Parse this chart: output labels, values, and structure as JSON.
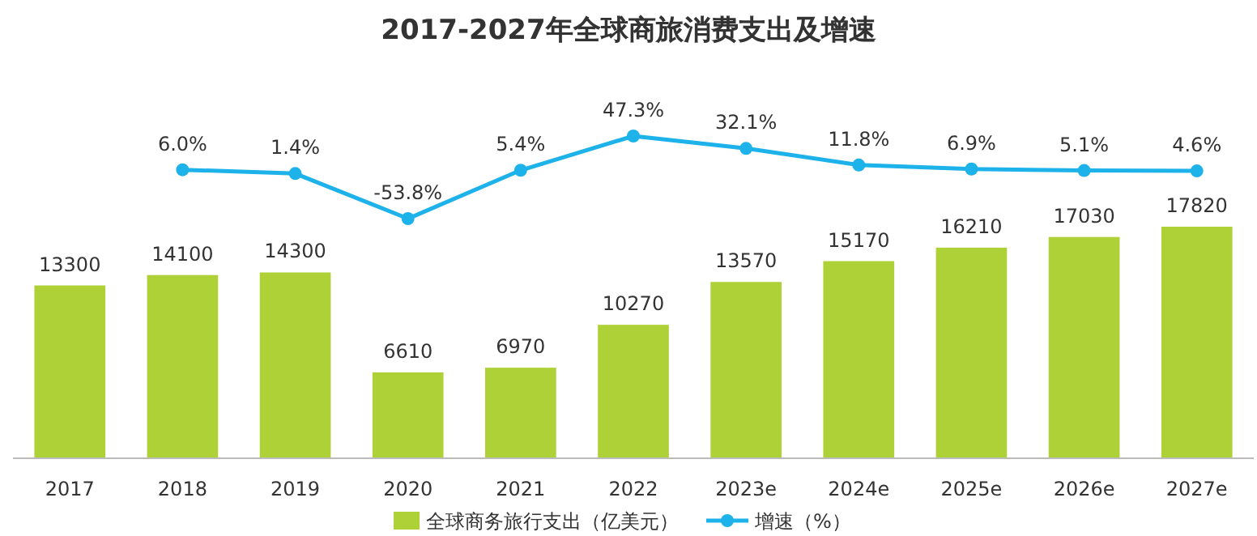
{
  "chart_data": [
    {
      "type": "bar",
      "categories": [
        "2017",
        "2018",
        "2019",
        "2020",
        "2021",
        "2022",
        "2023e",
        "2024e",
        "2025e",
        "2026e",
        "2027e"
      ],
      "legend": "bottom",
      "series": [
        {
          "name": "全球商务旅行支出（亿美元）",
          "color": "#add136",
          "values": [
            13300,
            14100,
            14300,
            6610,
            6970,
            10270,
            13570,
            15170,
            16210,
            17030,
            17820
          ],
          "value_labels": [
            "13300",
            "14100",
            "14300",
            "6610",
            "6970",
            "10270",
            "13570",
            "15170",
            "16210",
            "17030",
            "17820"
          ]
        }
      ]
    },
    {
      "type": "line",
      "title": "2017-2027年全球商旅消费支出及增速",
      "categories": [
        null,
        null,
        null,
        null,
        null,
        null,
        null,
        null,
        null,
        null,
        null
      ],
      "legend": "bottom",
      "marker": "circle",
      "series": [
        {
          "name": "增速（%）",
          "color": "#1db2ea",
          "values": [
            null,
            6.0,
            1.4,
            -53.8,
            5.4,
            47.3,
            32.1,
            11.8,
            6.9,
            5.1,
            4.6
          ],
          "value_labels": [
            null,
            "6.0%",
            "1.4%",
            "-53.8%",
            "5.4%",
            "47.3%",
            "32.1%",
            "11.8%",
            "6.9%",
            "5.1%",
            "4.6%"
          ]
        }
      ]
    }
  ]
}
